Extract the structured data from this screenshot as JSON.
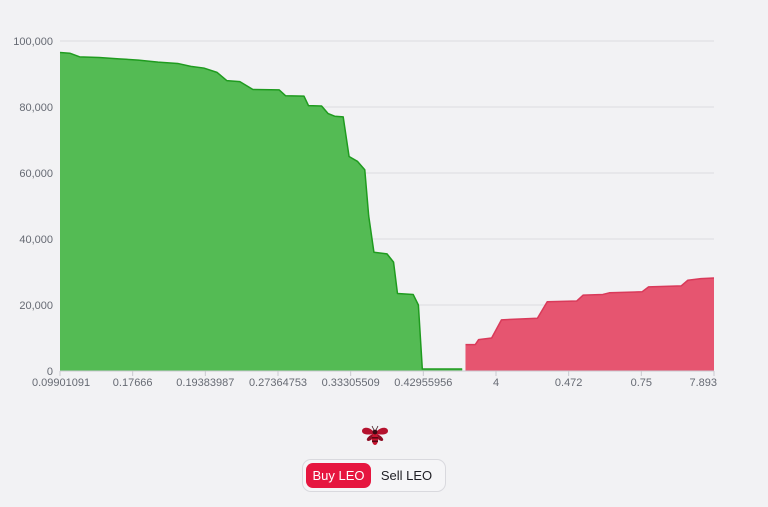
{
  "chart_data": {
    "type": "area",
    "title": "",
    "xlabel": "",
    "ylabel": "",
    "ylim": [
      0,
      100000
    ],
    "y_ticks": [
      0,
      20000,
      40000,
      60000,
      80000,
      100000
    ],
    "y_tick_labels": [
      "0",
      "20,000",
      "40,000",
      "60,000",
      "80,000",
      "100,000"
    ],
    "x_tick_labels": [
      "0.09901091",
      "0.17666",
      "0.19383987",
      "0.27364753",
      "0.33305509",
      "0.42955956",
      "4",
      "0.472",
      "0.75",
      "7.893"
    ],
    "grid": true,
    "series": [
      {
        "color": "#54bb54",
        "stroke": "#1f9b1f",
        "points": [
          [
            0,
            96500
          ],
          [
            1.5,
            96300
          ],
          [
            3.0,
            95200
          ],
          [
            6.0,
            95000
          ],
          [
            9.0,
            94600
          ],
          [
            12.0,
            94200
          ],
          [
            15.0,
            93600
          ],
          [
            18.0,
            93200
          ],
          [
            20.0,
            92300
          ],
          [
            22.0,
            91800
          ],
          [
            24.0,
            90500
          ],
          [
            25.5,
            88000
          ],
          [
            27.5,
            87700
          ],
          [
            29.5,
            85300
          ],
          [
            33.5,
            85200
          ],
          [
            34.5,
            83400
          ],
          [
            37.3,
            83300
          ],
          [
            38.0,
            80400
          ],
          [
            40.0,
            80300
          ],
          [
            41.0,
            78000
          ],
          [
            42.0,
            77200
          ],
          [
            43.3,
            77000
          ],
          [
            44.2,
            65000
          ],
          [
            45.5,
            63500
          ],
          [
            46.6,
            61000
          ],
          [
            47.2,
            47000
          ],
          [
            48.0,
            36000
          ],
          [
            50.0,
            35500
          ],
          [
            51.0,
            33000
          ],
          [
            51.6,
            23500
          ],
          [
            54.0,
            23200
          ],
          [
            54.8,
            20000
          ],
          [
            55.4,
            600
          ],
          [
            61.5,
            600
          ]
        ]
      },
      {
        "color": "#e65570",
        "stroke": "#d93a5a",
        "points": [
          [
            62.0,
            8000
          ],
          [
            63.5,
            8000
          ],
          [
            64.0,
            9500
          ],
          [
            66.0,
            10000
          ],
          [
            67.5,
            15500
          ],
          [
            73.0,
            16000
          ],
          [
            74.5,
            21000
          ],
          [
            79.0,
            21200
          ],
          [
            80.0,
            23000
          ],
          [
            83.0,
            23200
          ],
          [
            84.0,
            23700
          ],
          [
            89.0,
            24000
          ],
          [
            90.0,
            25500
          ],
          [
            95.0,
            25800
          ],
          [
            96.0,
            27500
          ],
          [
            98.0,
            28000
          ],
          [
            100.0,
            28200
          ]
        ]
      }
    ]
  },
  "toggle": {
    "buy_label": "Buy LEO",
    "sell_label": "Sell LEO",
    "active": "buy",
    "active_color": "#e6163f"
  },
  "logo": {
    "icon": "bee-icon"
  }
}
